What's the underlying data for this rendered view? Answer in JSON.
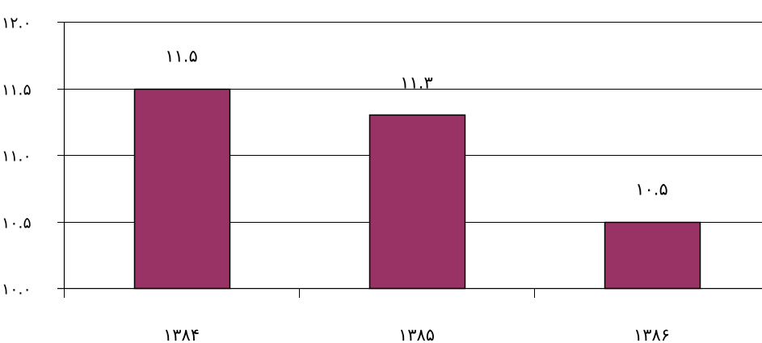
{
  "chart_data": {
    "type": "bar",
    "title": "",
    "xlabel": "",
    "ylabel": "",
    "categories": [
      "۱۳۸۴",
      "۱۳۸۵",
      "۱۳۸۶"
    ],
    "values": [
      11.5,
      11.3,
      10.5
    ],
    "data_labels": [
      "۱۱.۵",
      "۱۱.۳",
      "۱۰.۵"
    ],
    "ylim": [
      10.0,
      12.0
    ],
    "y_ticks": [
      10.0,
      10.5,
      11.0,
      11.5,
      12.0
    ],
    "y_tick_labels": [
      "۱۰.۰",
      "۱۰.۵",
      "۱۱.۰",
      "۱۱.۵",
      "۱۲.۰"
    ],
    "grid": true,
    "legend": "none",
    "colors": {
      "bar_fill": "#993366",
      "bar_stroke": "#000000",
      "grid": "#000000",
      "axis": "#000000"
    }
  }
}
